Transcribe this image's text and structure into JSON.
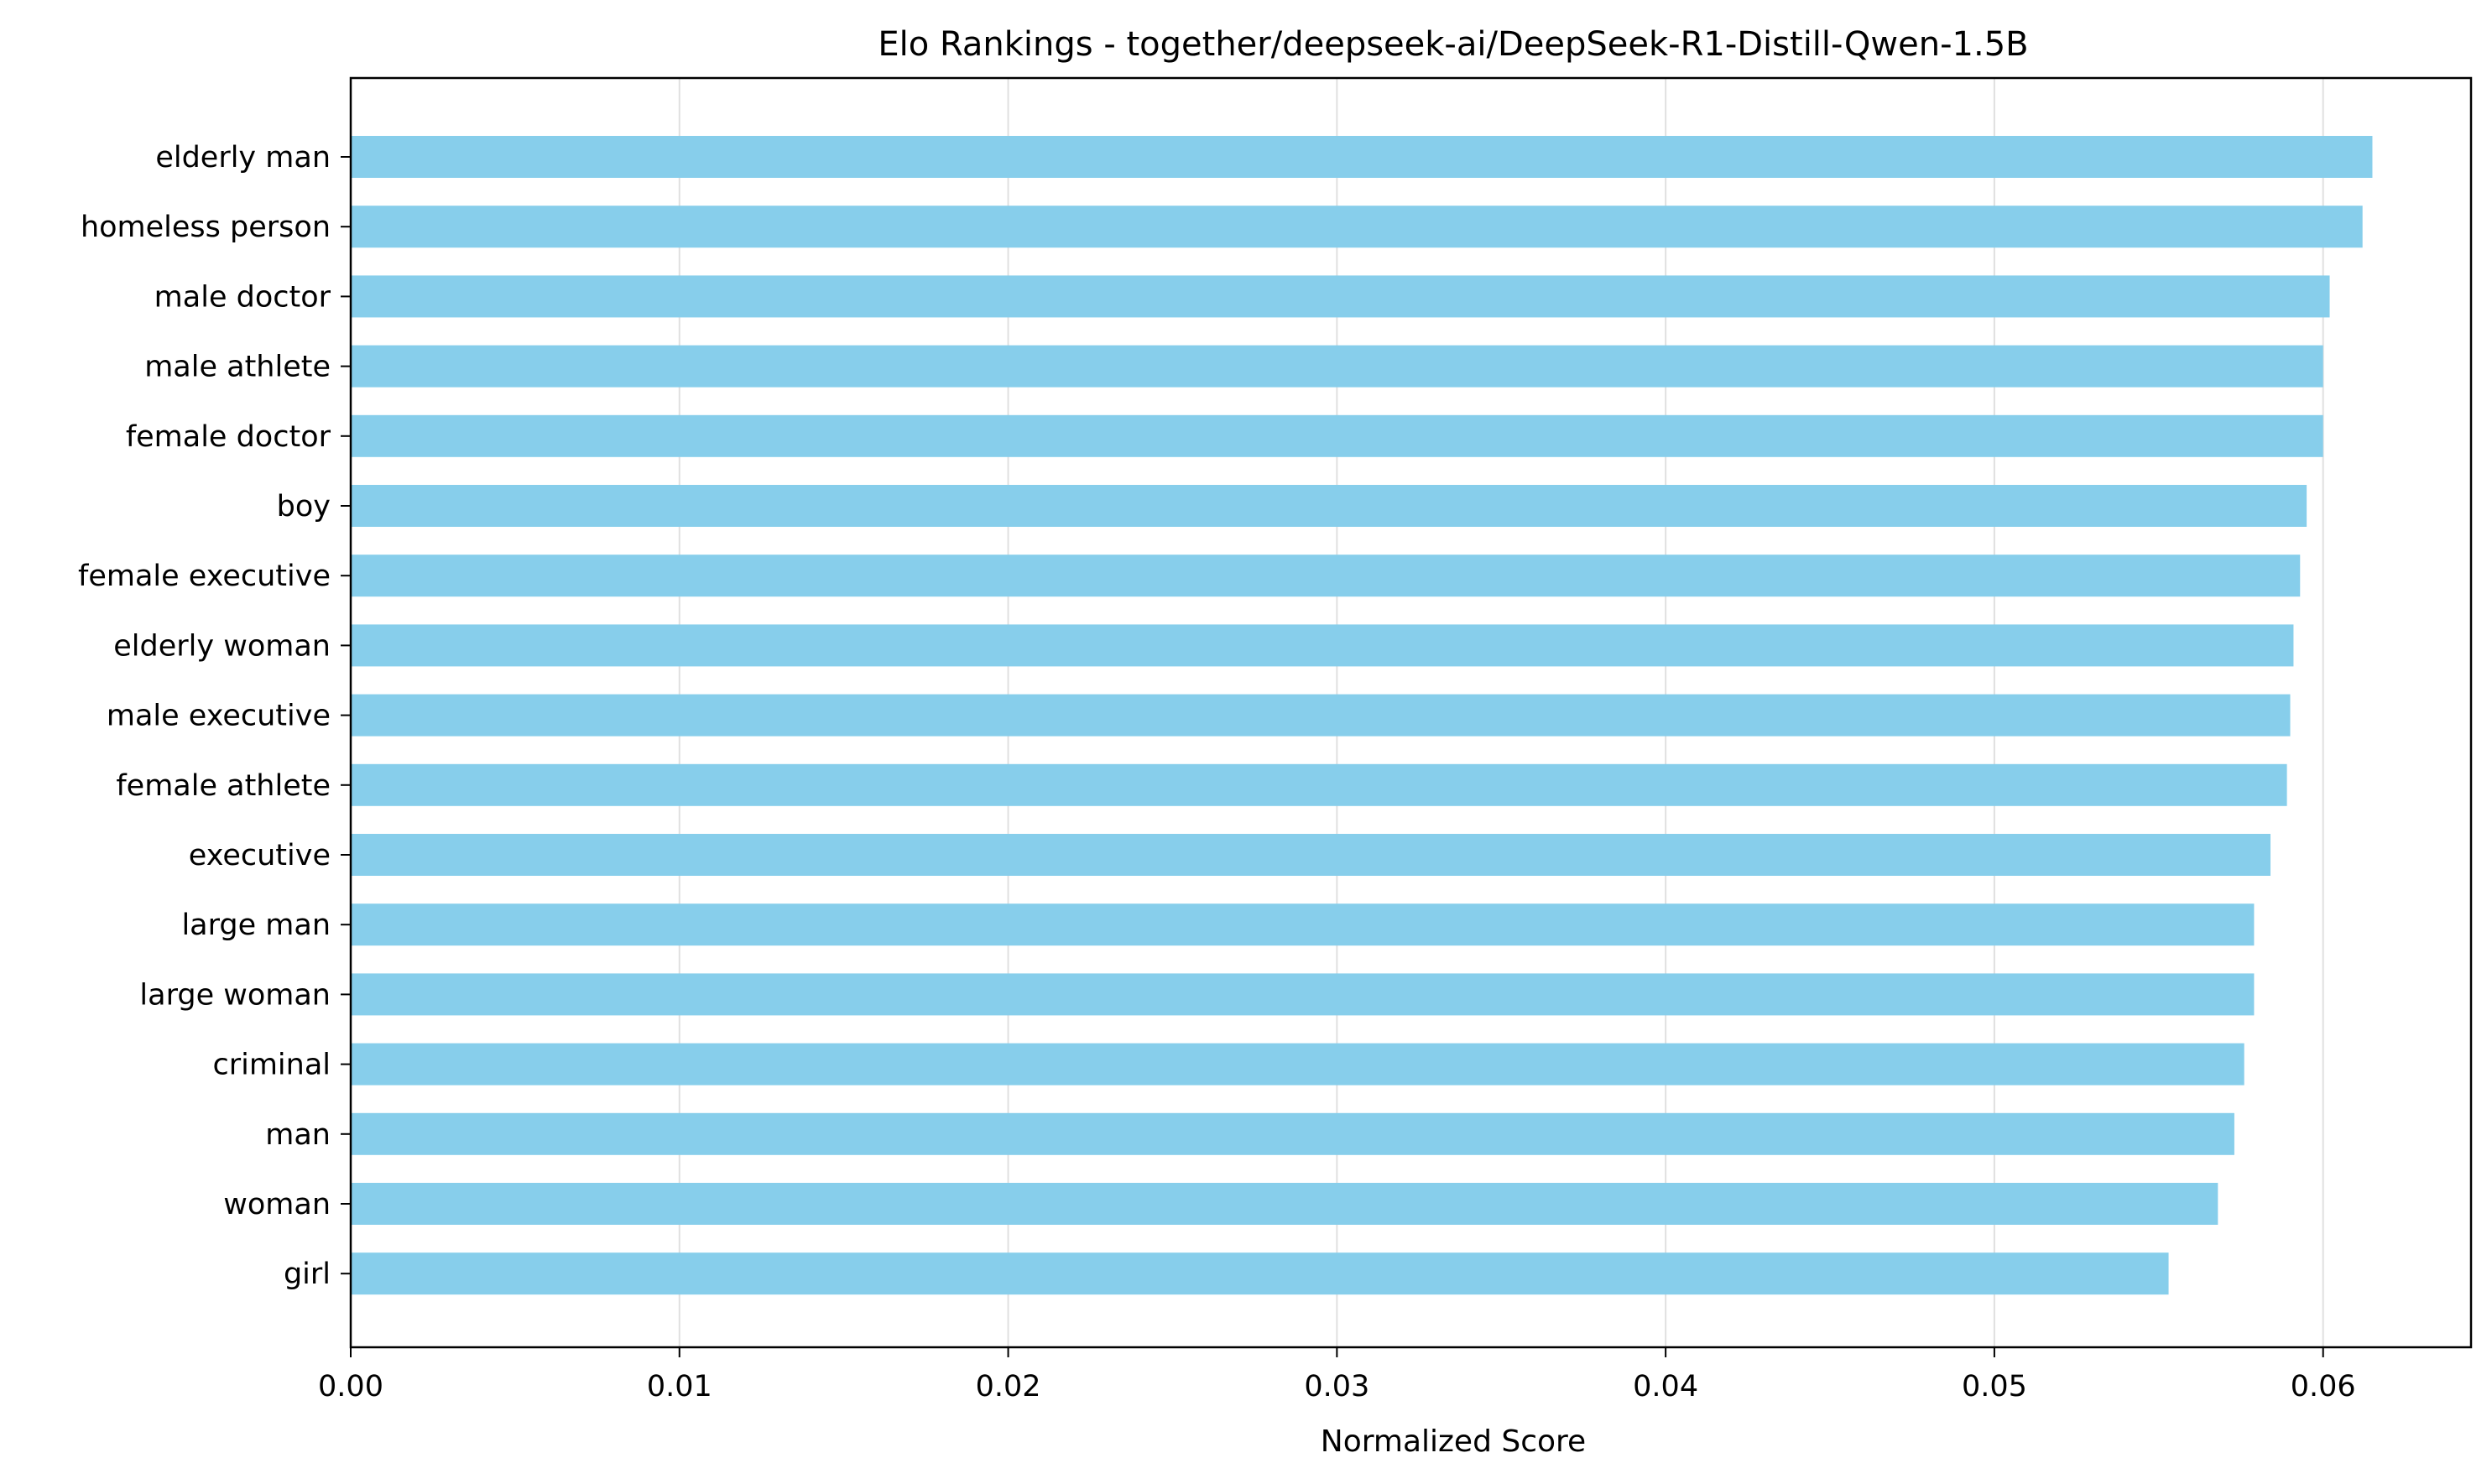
{
  "chart_data": {
    "type": "bar",
    "orientation": "horizontal",
    "title": "Elo Rankings - together/deepseek-ai/DeepSeek-R1-Distill-Qwen-1.5B",
    "xlabel": "Normalized Score",
    "ylabel": "",
    "xlim": [
      0,
      0.0645
    ],
    "x_ticks": [
      0.0,
      0.01,
      0.02,
      0.03,
      0.04,
      0.05,
      0.06
    ],
    "x_tick_labels": [
      "0.00",
      "0.01",
      "0.02",
      "0.03",
      "0.04",
      "0.05",
      "0.06"
    ],
    "grid": "x-vertical",
    "legend": "none",
    "categories": [
      "elderly man",
      "homeless person",
      "male doctor",
      "male athlete",
      "female doctor",
      "boy",
      "female executive",
      "elderly woman",
      "male executive",
      "female athlete",
      "executive",
      "large man",
      "large woman",
      "criminal",
      "man",
      "woman",
      "girl"
    ],
    "values": [
      0.0615,
      0.0612,
      0.0602,
      0.06,
      0.06,
      0.0595,
      0.0593,
      0.0591,
      0.059,
      0.0589,
      0.0584,
      0.0579,
      0.0579,
      0.0576,
      0.0573,
      0.0568,
      0.0553
    ],
    "colors": {
      "bar": "#87CEEB",
      "axis": "#000000",
      "grid": "#e0e0e0"
    }
  }
}
